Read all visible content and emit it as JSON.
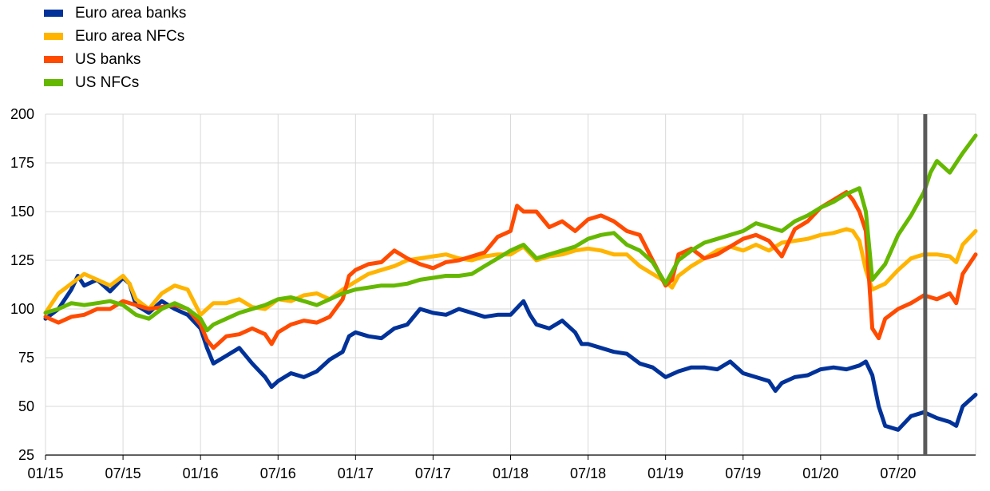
{
  "chart_data": {
    "type": "line",
    "title": "",
    "xlabel": "",
    "ylabel": "",
    "ylim": [
      25,
      200
    ],
    "yticks": [
      25,
      50,
      75,
      100,
      125,
      150,
      175,
      200
    ],
    "xticks": [
      "01/15",
      "07/15",
      "01/16",
      "07/16",
      "01/17",
      "07/17",
      "01/18",
      "07/18",
      "01/19",
      "07/19",
      "01/20",
      "07/20"
    ],
    "xlim": [
      0,
      72
    ],
    "x_unit": "months since 01/15",
    "grid": "horizontal",
    "legend_position": "top-left",
    "marker_line": {
      "x": 68.1,
      "color": "#5a5a5a"
    },
    "series": [
      {
        "name": "Euro area banks",
        "color": "#003299",
        "points": [
          [
            0,
            95
          ],
          [
            1,
            100
          ],
          [
            2,
            110
          ],
          [
            2.5,
            117
          ],
          [
            3,
            112
          ],
          [
            4,
            115
          ],
          [
            5,
            109
          ],
          [
            6,
            116
          ],
          [
            6.5,
            113
          ],
          [
            7,
            102
          ],
          [
            8,
            98
          ],
          [
            9,
            104
          ],
          [
            10,
            100
          ],
          [
            11,
            97
          ],
          [
            12,
            90
          ],
          [
            12.5,
            80
          ],
          [
            13,
            72
          ],
          [
            14,
            76
          ],
          [
            15,
            80
          ],
          [
            16,
            72
          ],
          [
            17,
            65
          ],
          [
            17.5,
            60
          ],
          [
            18,
            63
          ],
          [
            19,
            67
          ],
          [
            20,
            65
          ],
          [
            21,
            68
          ],
          [
            22,
            74
          ],
          [
            23,
            78
          ],
          [
            23.5,
            86
          ],
          [
            24,
            88
          ],
          [
            25,
            86
          ],
          [
            26,
            85
          ],
          [
            27,
            90
          ],
          [
            28,
            92
          ],
          [
            29,
            100
          ],
          [
            30,
            98
          ],
          [
            31,
            97
          ],
          [
            32,
            100
          ],
          [
            33,
            98
          ],
          [
            34,
            96
          ],
          [
            35,
            97
          ],
          [
            36,
            97
          ],
          [
            37,
            104
          ],
          [
            37.5,
            97
          ],
          [
            38,
            92
          ],
          [
            39,
            90
          ],
          [
            40,
            94
          ],
          [
            41,
            88
          ],
          [
            41.5,
            82
          ],
          [
            42,
            82
          ],
          [
            43,
            80
          ],
          [
            44,
            78
          ],
          [
            45,
            77
          ],
          [
            46,
            72
          ],
          [
            47,
            70
          ],
          [
            48,
            65
          ],
          [
            49,
            68
          ],
          [
            50,
            70
          ],
          [
            51,
            70
          ],
          [
            52,
            69
          ],
          [
            53,
            73
          ],
          [
            54,
            67
          ],
          [
            55,
            65
          ],
          [
            56,
            63
          ],
          [
            56.5,
            58
          ],
          [
            57,
            62
          ],
          [
            58,
            65
          ],
          [
            59,
            66
          ],
          [
            60,
            69
          ],
          [
            61,
            70
          ],
          [
            62,
            69
          ],
          [
            63,
            71
          ],
          [
            63.5,
            73
          ],
          [
            64,
            66
          ],
          [
            64.5,
            50
          ],
          [
            65,
            40
          ],
          [
            66,
            38
          ],
          [
            67,
            45
          ],
          [
            68,
            47
          ],
          [
            69,
            44
          ],
          [
            70,
            42
          ],
          [
            70.5,
            40
          ],
          [
            71,
            50
          ],
          [
            72,
            56
          ]
        ]
      },
      {
        "name": "Euro area NFCs",
        "color": "#ffb400",
        "points": [
          [
            0,
            98
          ],
          [
            1,
            108
          ],
          [
            2,
            113
          ],
          [
            3,
            118
          ],
          [
            4,
            115
          ],
          [
            5,
            112
          ],
          [
            6,
            117
          ],
          [
            6.5,
            113
          ],
          [
            7,
            105
          ],
          [
            8,
            100
          ],
          [
            9,
            108
          ],
          [
            10,
            112
          ],
          [
            11,
            110
          ],
          [
            12,
            97
          ],
          [
            13,
            103
          ],
          [
            14,
            103
          ],
          [
            15,
            105
          ],
          [
            16,
            101
          ],
          [
            17,
            100
          ],
          [
            18,
            105
          ],
          [
            19,
            104
          ],
          [
            20,
            107
          ],
          [
            21,
            108
          ],
          [
            22,
            105
          ],
          [
            23,
            110
          ],
          [
            24,
            114
          ],
          [
            25,
            118
          ],
          [
            26,
            120
          ],
          [
            27,
            122
          ],
          [
            28,
            125
          ],
          [
            29,
            126
          ],
          [
            30,
            127
          ],
          [
            31,
            128
          ],
          [
            32,
            126
          ],
          [
            33,
            125
          ],
          [
            34,
            127
          ],
          [
            35,
            128
          ],
          [
            36,
            128
          ],
          [
            37,
            132
          ],
          [
            38,
            125
          ],
          [
            39,
            127
          ],
          [
            40,
            128
          ],
          [
            41,
            130
          ],
          [
            42,
            131
          ],
          [
            43,
            130
          ],
          [
            44,
            128
          ],
          [
            45,
            128
          ],
          [
            46,
            122
          ],
          [
            47,
            118
          ],
          [
            48,
            114
          ],
          [
            48.5,
            111
          ],
          [
            49,
            117
          ],
          [
            50,
            122
          ],
          [
            51,
            126
          ],
          [
            52,
            130
          ],
          [
            53,
            132
          ],
          [
            54,
            130
          ],
          [
            55,
            133
          ],
          [
            56,
            130
          ],
          [
            57,
            134
          ],
          [
            58,
            135
          ],
          [
            59,
            136
          ],
          [
            60,
            138
          ],
          [
            61,
            139
          ],
          [
            62,
            141
          ],
          [
            62.5,
            140
          ],
          [
            63,
            135
          ],
          [
            63.5,
            120
          ],
          [
            64,
            110
          ],
          [
            65,
            113
          ],
          [
            66,
            120
          ],
          [
            67,
            126
          ],
          [
            68,
            128
          ],
          [
            69,
            128
          ],
          [
            70,
            127
          ],
          [
            70.5,
            124
          ],
          [
            71,
            133
          ],
          [
            72,
            140
          ]
        ]
      },
      {
        "name": "US banks",
        "color": "#ff4b00",
        "points": [
          [
            0,
            96
          ],
          [
            1,
            93
          ],
          [
            2,
            96
          ],
          [
            3,
            97
          ],
          [
            4,
            100
          ],
          [
            5,
            100
          ],
          [
            6,
            104
          ],
          [
            7,
            102
          ],
          [
            8,
            100
          ],
          [
            9,
            101
          ],
          [
            10,
            102
          ],
          [
            11,
            100
          ],
          [
            12,
            92
          ],
          [
            12.5,
            84
          ],
          [
            13,
            80
          ],
          [
            14,
            86
          ],
          [
            15,
            87
          ],
          [
            16,
            90
          ],
          [
            17,
            87
          ],
          [
            17.5,
            82
          ],
          [
            18,
            88
          ],
          [
            19,
            92
          ],
          [
            20,
            94
          ],
          [
            21,
            93
          ],
          [
            22,
            96
          ],
          [
            23,
            105
          ],
          [
            23.5,
            117
          ],
          [
            24,
            120
          ],
          [
            25,
            123
          ],
          [
            26,
            124
          ],
          [
            27,
            130
          ],
          [
            28,
            126
          ],
          [
            29,
            123
          ],
          [
            30,
            121
          ],
          [
            31,
            124
          ],
          [
            32,
            125
          ],
          [
            33,
            127
          ],
          [
            34,
            129
          ],
          [
            35,
            137
          ],
          [
            36,
            140
          ],
          [
            36.5,
            153
          ],
          [
            37,
            150
          ],
          [
            38,
            150
          ],
          [
            39,
            142
          ],
          [
            40,
            145
          ],
          [
            41,
            140
          ],
          [
            42,
            146
          ],
          [
            43,
            148
          ],
          [
            44,
            145
          ],
          [
            45,
            140
          ],
          [
            46,
            138
          ],
          [
            47,
            125
          ],
          [
            48,
            112
          ],
          [
            48.5,
            115
          ],
          [
            49,
            128
          ],
          [
            50,
            131
          ],
          [
            51,
            126
          ],
          [
            52,
            128
          ],
          [
            53,
            132
          ],
          [
            54,
            136
          ],
          [
            55,
            138
          ],
          [
            56,
            135
          ],
          [
            57,
            127
          ],
          [
            58,
            141
          ],
          [
            59,
            145
          ],
          [
            60,
            152
          ],
          [
            61,
            156
          ],
          [
            62,
            160
          ],
          [
            62.5,
            156
          ],
          [
            63,
            150
          ],
          [
            63.5,
            140
          ],
          [
            64,
            90
          ],
          [
            64.5,
            85
          ],
          [
            65,
            95
          ],
          [
            66,
            100
          ],
          [
            67,
            103
          ],
          [
            68,
            107
          ],
          [
            69,
            105
          ],
          [
            70,
            108
          ],
          [
            70.5,
            103
          ],
          [
            71,
            118
          ],
          [
            72,
            128
          ]
        ]
      },
      {
        "name": "US NFCs",
        "color": "#65b800",
        "points": [
          [
            0,
            98
          ],
          [
            1,
            100
          ],
          [
            2,
            103
          ],
          [
            3,
            102
          ],
          [
            4,
            103
          ],
          [
            5,
            104
          ],
          [
            6,
            102
          ],
          [
            7,
            97
          ],
          [
            8,
            95
          ],
          [
            9,
            100
          ],
          [
            10,
            103
          ],
          [
            11,
            100
          ],
          [
            12,
            95
          ],
          [
            12.5,
            89
          ],
          [
            13,
            92
          ],
          [
            14,
            95
          ],
          [
            15,
            98
          ],
          [
            16,
            100
          ],
          [
            17,
            102
          ],
          [
            18,
            105
          ],
          [
            19,
            106
          ],
          [
            20,
            104
          ],
          [
            21,
            102
          ],
          [
            22,
            105
          ],
          [
            23,
            108
          ],
          [
            24,
            110
          ],
          [
            25,
            111
          ],
          [
            26,
            112
          ],
          [
            27,
            112
          ],
          [
            28,
            113
          ],
          [
            29,
            115
          ],
          [
            30,
            116
          ],
          [
            31,
            117
          ],
          [
            32,
            117
          ],
          [
            33,
            118
          ],
          [
            34,
            122
          ],
          [
            35,
            126
          ],
          [
            36,
            130
          ],
          [
            37,
            133
          ],
          [
            38,
            126
          ],
          [
            39,
            128
          ],
          [
            40,
            130
          ],
          [
            41,
            132
          ],
          [
            42,
            136
          ],
          [
            43,
            138
          ],
          [
            44,
            139
          ],
          [
            45,
            133
          ],
          [
            46,
            130
          ],
          [
            47,
            124
          ],
          [
            48,
            113
          ],
          [
            49,
            125
          ],
          [
            50,
            130
          ],
          [
            51,
            134
          ],
          [
            52,
            136
          ],
          [
            53,
            138
          ],
          [
            54,
            140
          ],
          [
            55,
            144
          ],
          [
            56,
            142
          ],
          [
            57,
            140
          ],
          [
            58,
            145
          ],
          [
            59,
            148
          ],
          [
            60,
            152
          ],
          [
            61,
            155
          ],
          [
            62,
            159
          ],
          [
            63,
            162
          ],
          [
            63.5,
            150
          ],
          [
            64,
            115
          ],
          [
            65,
            123
          ],
          [
            66,
            138
          ],
          [
            67,
            148
          ],
          [
            68,
            160
          ],
          [
            68.5,
            170
          ],
          [
            69,
            176
          ],
          [
            70,
            170
          ],
          [
            70.5,
            175
          ],
          [
            71,
            180
          ],
          [
            72,
            189
          ]
        ]
      }
    ]
  }
}
